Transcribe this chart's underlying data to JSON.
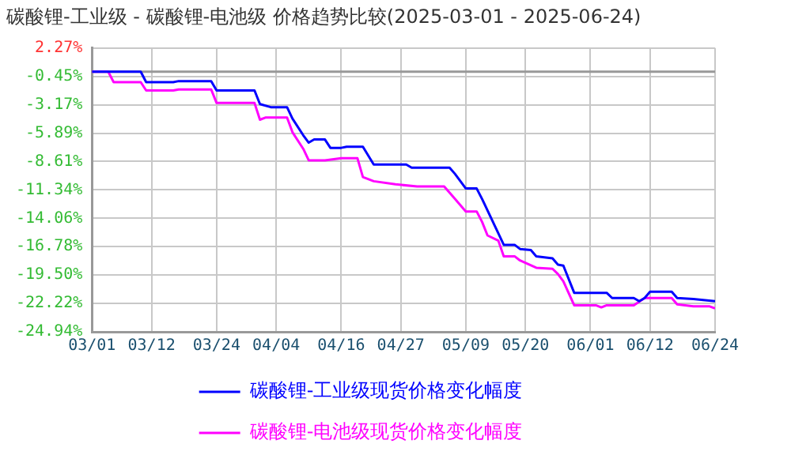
{
  "chart_data": {
    "type": "line",
    "title": "碳酸锂-工业级 - 碳酸锂-电池级 价格趋势比较(2025-03-01 - 2025-06-24)",
    "xlim": [
      "2025-03-01",
      "2025-06-24"
    ],
    "xticks": [
      {
        "value": "2025-03-01",
        "label": "03/01"
      },
      {
        "value": "2025-03-12",
        "label": "03/12"
      },
      {
        "value": "2025-03-24",
        "label": "03/24"
      },
      {
        "value": "2025-04-04",
        "label": "04/04"
      },
      {
        "value": "2025-04-16",
        "label": "04/16"
      },
      {
        "value": "2025-04-27",
        "label": "04/27"
      },
      {
        "value": "2025-05-09",
        "label": "05/09"
      },
      {
        "value": "2025-05-20",
        "label": "05/20"
      },
      {
        "value": "2025-06-01",
        "label": "06/01"
      },
      {
        "value": "2025-06-12",
        "label": "06/12"
      },
      {
        "value": "2025-06-24",
        "label": "06/24"
      }
    ],
    "ylim": [
      -24.94,
      2.27
    ],
    "yticks": [
      {
        "value": 2.27,
        "label": "2.27%"
      },
      {
        "value": -0.45,
        "label": "-0.45%"
      },
      {
        "value": -3.17,
        "label": "-3.17%"
      },
      {
        "value": -5.89,
        "label": "-5.89%"
      },
      {
        "value": -8.61,
        "label": "-8.61%"
      },
      {
        "value": -11.34,
        "label": "-11.34%"
      },
      {
        "value": -14.06,
        "label": "-14.06%"
      },
      {
        "value": -16.78,
        "label": "-16.78%"
      },
      {
        "value": -19.5,
        "label": "-19.50%"
      },
      {
        "value": -22.22,
        "label": "-22.22%"
      },
      {
        "value": -24.94,
        "label": "-24.94%"
      }
    ],
    "grid": true,
    "legend": "bottom",
    "marker": "none",
    "line_style": "solid",
    "ref_lines": [
      {
        "axis": "y",
        "value": 0,
        "color": "#999999"
      }
    ],
    "series": [
      {
        "name": "碳酸锂-工业级现货价格变化幅度",
        "color": "#0000ff",
        "x": [
          "2025-03-01",
          "2025-03-10",
          "2025-03-11",
          "2025-03-16",
          "2025-03-17",
          "2025-03-23",
          "2025-03-24",
          "2025-03-31",
          "2025-04-01",
          "2025-04-03",
          "2025-04-06",
          "2025-04-07",
          "2025-04-09",
          "2025-04-10",
          "2025-04-11",
          "2025-04-13",
          "2025-04-14",
          "2025-04-16",
          "2025-04-17",
          "2025-04-20",
          "2025-04-22",
          "2025-04-28",
          "2025-04-29",
          "2025-05-06",
          "2025-05-07",
          "2025-05-09",
          "2025-05-11",
          "2025-05-12",
          "2025-05-16",
          "2025-05-18",
          "2025-05-19",
          "2025-05-21",
          "2025-05-22",
          "2025-05-25",
          "2025-05-26",
          "2025-05-27",
          "2025-05-29",
          "2025-06-04",
          "2025-06-05",
          "2025-06-09",
          "2025-06-10",
          "2025-06-11",
          "2025-06-12",
          "2025-06-16",
          "2025-06-17",
          "2025-06-20",
          "2025-06-24"
        ],
        "values": [
          0,
          0,
          -1.0,
          -1.0,
          -0.9,
          -0.9,
          -1.8,
          -1.8,
          -3.1,
          -3.4,
          -3.4,
          -4.5,
          -6.1,
          -6.8,
          -6.5,
          -6.5,
          -7.3,
          -7.3,
          -7.2,
          -7.2,
          -8.9,
          -8.9,
          -9.2,
          -9.2,
          -9.8,
          -11.2,
          -11.2,
          -12.2,
          -16.6,
          -16.6,
          -17.0,
          -17.1,
          -17.7,
          -17.9,
          -18.5,
          -18.6,
          -21.2,
          -21.2,
          -21.7,
          -21.7,
          -22.0,
          -21.7,
          -21.1,
          -21.1,
          -21.7,
          -21.8,
          -22.0
        ]
      },
      {
        "name": "碳酸锂-电池级现货价格变化幅度",
        "color": "#ff00ff",
        "x": [
          "2025-03-01",
          "2025-03-04",
          "2025-03-05",
          "2025-03-10",
          "2025-03-11",
          "2025-03-16",
          "2025-03-17",
          "2025-03-23",
          "2025-03-24",
          "2025-03-31",
          "2025-04-01",
          "2025-04-02",
          "2025-04-06",
          "2025-04-07",
          "2025-04-09",
          "2025-04-10",
          "2025-04-13",
          "2025-04-16",
          "2025-04-19",
          "2025-04-20",
          "2025-04-22",
          "2025-04-26",
          "2025-04-30",
          "2025-05-05",
          "2025-05-07",
          "2025-05-09",
          "2025-05-11",
          "2025-05-12",
          "2025-05-13",
          "2025-05-15",
          "2025-05-16",
          "2025-05-18",
          "2025-05-19",
          "2025-05-22",
          "2025-05-25",
          "2025-05-26",
          "2025-05-27",
          "2025-05-29",
          "2025-06-02",
          "2025-06-03",
          "2025-06-04",
          "2025-06-09",
          "2025-06-11",
          "2025-06-16",
          "2025-06-17",
          "2025-06-20",
          "2025-06-23",
          "2025-06-24"
        ],
        "values": [
          0,
          0,
          -1.0,
          -1.0,
          -1.8,
          -1.8,
          -1.7,
          -1.7,
          -3.0,
          -3.0,
          -4.6,
          -4.4,
          -4.4,
          -5.8,
          -7.4,
          -8.5,
          -8.5,
          -8.3,
          -8.3,
          -10.1,
          -10.5,
          -10.8,
          -11.0,
          -11.0,
          -12.2,
          -13.4,
          -13.4,
          -14.4,
          -15.7,
          -16.2,
          -17.7,
          -17.7,
          -18.1,
          -18.8,
          -18.9,
          -19.4,
          -20.1,
          -22.4,
          -22.4,
          -22.6,
          -22.4,
          -22.4,
          -21.7,
          -21.7,
          -22.3,
          -22.5,
          -22.5,
          -22.7
        ]
      }
    ]
  }
}
